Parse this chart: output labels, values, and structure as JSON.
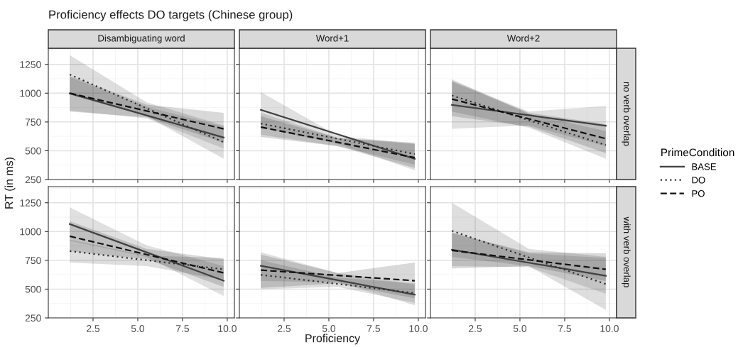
{
  "chart_data": [
    {
      "type": "line",
      "title": "Proficiency effects DO targets (Chinese group)",
      "subtitle": "Disambiguating word",
      "ylabel": "RT (in ms)",
      "legend": "right",
      "legend_title": "PrimeCondition",
      "grid": true,
      "tick_labels": "y",
      "xlim": [
        0,
        10.4
      ],
      "ylim": [
        250,
        1390
      ],
      "xticks": [
        {
          "value": 2.5,
          "label": null
        },
        {
          "value": 5,
          "label": null
        },
        {
          "value": 7.5,
          "label": null
        },
        {
          "value": 10,
          "label": null
        }
      ],
      "yticks": [
        250,
        500,
        750,
        1000,
        1250
      ],
      "x": [
        1.2,
        5.5,
        9.8
      ],
      "series": [
        {
          "name": "BASE",
          "color": "#404040",
          "line_style": "solid",
          "values": [
            998,
            807,
            615
          ],
          "lower": [
            850,
            780,
            520
          ],
          "upper": [
            1140,
            880,
            710
          ]
        },
        {
          "name": "DO",
          "color": "#303030",
          "line_style": "dotted",
          "values": [
            1162,
            868,
            574
          ],
          "lower": [
            1000,
            800,
            430
          ],
          "upper": [
            1330,
            920,
            720
          ]
        },
        {
          "name": "PO",
          "color": "#101010",
          "line_style": "dashed",
          "values": [
            1000,
            845,
            690
          ],
          "lower": [
            840,
            790,
            570
          ],
          "upper": [
            1150,
            900,
            830
          ]
        }
      ]
    },
    {
      "type": "line",
      "subtitle": "Word+1",
      "grid": true,
      "tick_labels": false,
      "xlim": [
        0,
        10.4
      ],
      "ylim": [
        250,
        1390
      ],
      "xticks": [
        {
          "value": 2.5,
          "label": null
        },
        {
          "value": 5,
          "label": null
        },
        {
          "value": 7.5,
          "label": null
        },
        {
          "value": 10,
          "label": null
        }
      ],
      "yticks": [
        250,
        500,
        750,
        1000,
        1250
      ],
      "x": [
        1.2,
        5.5,
        9.8
      ],
      "series": [
        {
          "color": "#404040",
          "line_style": "solid",
          "values": [
            855,
            643,
            430
          ],
          "lower": [
            700,
            560,
            330
          ],
          "upper": [
            1010,
            630,
            560
          ]
        },
        {
          "color": "#303030",
          "line_style": "dotted",
          "values": [
            736,
            604,
            471
          ],
          "lower": [
            640,
            540,
            380
          ],
          "upper": [
            830,
            610,
            560
          ]
        },
        {
          "color": "#101010",
          "line_style": "dashed",
          "values": [
            705,
            573,
            440
          ],
          "lower": [
            620,
            540,
            350
          ],
          "upper": [
            800,
            610,
            570
          ]
        }
      ]
    },
    {
      "type": "line",
      "subtitle": "Word+2",
      "annotations": [
        "no verb overlap"
      ],
      "grid": true,
      "tick_labels": false,
      "xlim": [
        0,
        10.4
      ],
      "ylim": [
        250,
        1390
      ],
      "xticks": [
        {
          "value": 2.5,
          "label": null
        },
        {
          "value": 5,
          "label": null
        },
        {
          "value": 7.5,
          "label": null
        },
        {
          "value": 10,
          "label": null
        }
      ],
      "yticks": [
        250,
        500,
        750,
        1000,
        1250
      ],
      "x": [
        1.2,
        5.5,
        9.8
      ],
      "series": [
        {
          "color": "#404040",
          "line_style": "solid",
          "values": [
            898,
            808,
            717
          ],
          "lower": [
            690,
            720,
            540
          ],
          "upper": [
            1110,
            840,
            890
          ]
        },
        {
          "color": "#303030",
          "line_style": "dotted",
          "values": [
            980,
            765,
            549
          ],
          "lower": [
            840,
            700,
            430
          ],
          "upper": [
            1120,
            820,
            670
          ]
        },
        {
          "color": "#101010",
          "line_style": "dashed",
          "values": [
            949,
            777,
            605
          ],
          "lower": [
            800,
            710,
            480
          ],
          "upper": [
            1100,
            830,
            730
          ]
        }
      ]
    },
    {
      "type": "line",
      "grid": true,
      "xlim": [
        0,
        10.4
      ],
      "ylim": [
        250,
        1390
      ],
      "xticks": [
        {
          "value": 2.5,
          "label": "2.5"
        },
        {
          "value": 5,
          "label": "5.0"
        },
        {
          "value": 7.5,
          "label": "7.5"
        },
        {
          "value": 10,
          "label": "10.0"
        }
      ],
      "yticks": [
        250,
        500,
        750,
        1000,
        1250
      ],
      "x": [
        1.2,
        5.5,
        9.8
      ],
      "series": [
        {
          "color": "#404040",
          "line_style": "solid",
          "values": [
            1065,
            819,
            573
          ],
          "lower": [
            920,
            780,
            440
          ],
          "upper": [
            1210,
            880,
            700
          ]
        },
        {
          "color": "#303030",
          "line_style": "dotted",
          "values": [
            830,
            751,
            672
          ],
          "lower": [
            730,
            700,
            580
          ],
          "upper": [
            930,
            790,
            770
          ]
        },
        {
          "color": "#101010",
          "line_style": "dashed",
          "values": [
            959,
            800,
            641
          ],
          "lower": [
            830,
            760,
            520
          ],
          "upper": [
            1090,
            850,
            760
          ]
        }
      ]
    },
    {
      "type": "line",
      "xlabel": "Proficiency",
      "grid": true,
      "tick_labels": "x",
      "xlim": [
        0,
        10.4
      ],
      "ylim": [
        250,
        1390
      ],
      "xticks": [
        {
          "value": 2.5,
          "label": "2.5"
        },
        {
          "value": 5,
          "label": "5.0"
        },
        {
          "value": 7.5,
          "label": "7.5"
        },
        {
          "value": 10,
          "label": "10.0"
        }
      ],
      "yticks": [
        250,
        500,
        750,
        1000,
        1250
      ],
      "x": [
        1.2,
        5.5,
        9.8
      ],
      "series": [
        {
          "color": "#404040",
          "line_style": "solid",
          "values": [
            702,
            577,
            452
          ],
          "lower": [
            570,
            560,
            360
          ],
          "upper": [
            820,
            640,
            540
          ]
        },
        {
          "color": "#303030",
          "line_style": "dotted",
          "values": [
            624,
            545,
            466
          ],
          "lower": [
            500,
            520,
            380
          ],
          "upper": [
            750,
            600,
            550
          ]
        },
        {
          "color": "#101010",
          "line_style": "dashed",
          "values": [
            665,
            619,
            573
          ],
          "lower": [
            510,
            550,
            420
          ],
          "upper": [
            800,
            640,
            730
          ]
        }
      ]
    },
    {
      "type": "line",
      "annotations": [
        "with verb overlap"
      ],
      "grid": true,
      "tick_labels": "x",
      "xlim": [
        0,
        10.4
      ],
      "ylim": [
        250,
        1390
      ],
      "xticks": [
        {
          "value": 2.5,
          "label": "2.5"
        },
        {
          "value": 5,
          "label": "5.0"
        },
        {
          "value": 7.5,
          "label": "7.5"
        },
        {
          "value": 10,
          "label": "10.0"
        }
      ],
      "yticks": [
        250,
        500,
        750,
        1000,
        1250
      ],
      "x": [
        1.2,
        5.5,
        9.8
      ],
      "series": [
        {
          "color": "#404040",
          "line_style": "solid",
          "values": [
            842,
            729,
            616
          ],
          "lower": [
            700,
            690,
            460
          ],
          "upper": [
            990,
            810,
            770
          ]
        },
        {
          "color": "#303030",
          "line_style": "dotted",
          "values": [
            1006,
            775,
            544
          ],
          "lower": [
            780,
            700,
            320
          ],
          "upper": [
            1250,
            850,
            780
          ]
        },
        {
          "color": "#101010",
          "line_style": "dashed",
          "values": [
            836,
            754,
            672
          ],
          "lower": [
            680,
            700,
            570
          ],
          "upper": [
            990,
            820,
            810
          ]
        }
      ]
    }
  ]
}
